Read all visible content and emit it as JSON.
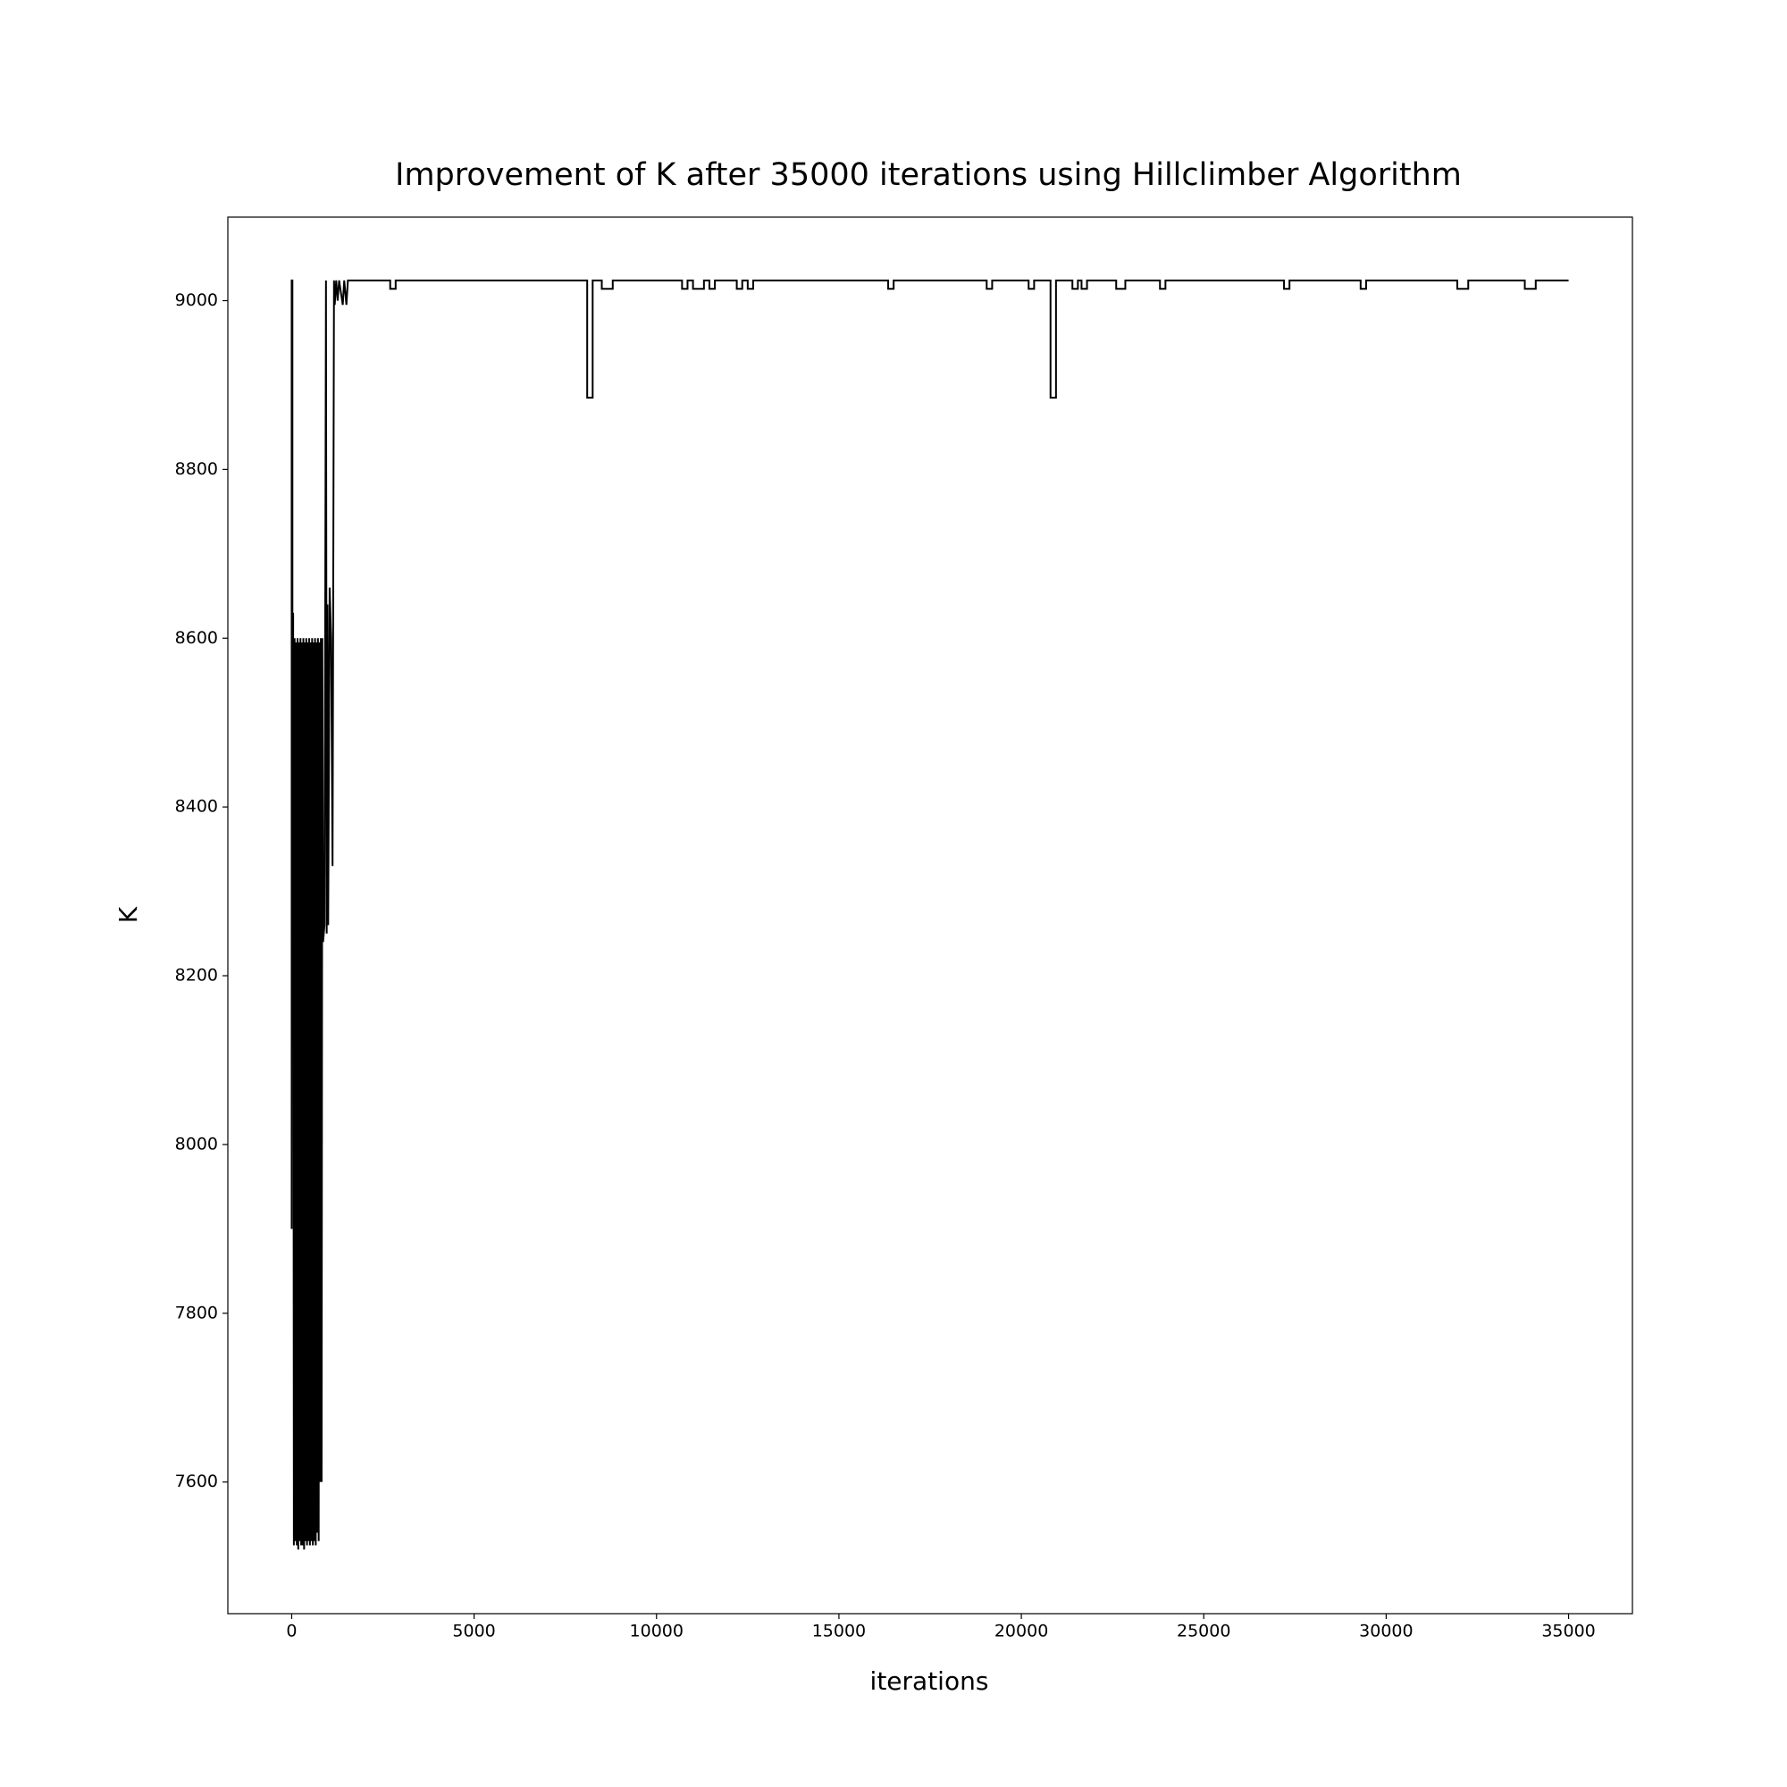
{
  "chart_data": {
    "type": "line",
    "title": "Improvement of K after 35000 iterations using Hillclimber Algorithm",
    "xlabel": "iterations",
    "ylabel": "K",
    "xlim": [
      -1750,
      36750
    ],
    "ylim": [
      7444,
      9099
    ],
    "xticks": [
      0,
      5000,
      10000,
      15000,
      20000,
      25000,
      30000,
      35000
    ],
    "yticks": [
      7600,
      7800,
      8000,
      8200,
      8400,
      8600,
      8800,
      9000
    ],
    "grid": false,
    "series": [
      {
        "name": "K",
        "color": "#000000",
        "x": [
          0,
          0,
          20,
          20,
          40,
          60,
          80,
          100,
          120,
          140,
          160,
          180,
          200,
          220,
          240,
          260,
          280,
          300,
          320,
          340,
          360,
          380,
          400,
          420,
          440,
          460,
          480,
          500,
          520,
          540,
          560,
          580,
          600,
          620,
          640,
          660,
          680,
          700,
          720,
          740,
          760,
          780,
          800,
          820,
          840,
          860,
          900,
          940,
          960,
          980,
          1000,
          1040,
          1080,
          1120,
          1160,
          1180,
          1220,
          1260,
          1300,
          1400,
          1440,
          1500,
          1540,
          2700,
          2700,
          2850,
          2850,
          8100,
          8100,
          8250,
          8250,
          8500,
          8500,
          8800,
          8800,
          10700,
          10700,
          10850,
          10850,
          11000,
          11000,
          11300,
          11300,
          11450,
          11450,
          11600,
          11600,
          12200,
          12200,
          12350,
          12350,
          12500,
          12500,
          12650,
          12650,
          16350,
          16350,
          16500,
          16500,
          19050,
          19050,
          19200,
          19200,
          20200,
          20200,
          20350,
          20350,
          20800,
          20800,
          20950,
          20950,
          21400,
          21400,
          21550,
          21550,
          21650,
          21650,
          21800,
          21800,
          22600,
          22600,
          22850,
          22850,
          23800,
          23800,
          23950,
          23950,
          27200,
          27200,
          27350,
          27350,
          29300,
          29300,
          29450,
          29450,
          31950,
          31950,
          32250,
          32250,
          33800,
          33800,
          34100,
          34100,
          35000
        ],
        "values": [
          7900,
          9024,
          9024,
          8290,
          8630,
          7525,
          8600,
          7530,
          8595,
          7525,
          8600,
          7520,
          8595,
          7530,
          8600,
          7525,
          8595,
          7525,
          8600,
          7520,
          8595,
          7530,
          8600,
          7525,
          8595,
          7530,
          8600,
          7525,
          8595,
          7530,
          8600,
          7525,
          8595,
          7530,
          8600,
          7525,
          8595,
          7540,
          8600,
          7530,
          8595,
          7600,
          8600,
          7600,
          8600,
          8240,
          8260,
          9024,
          8250,
          8640,
          8260,
          8660,
          8600,
          8330,
          9024,
          8995,
          9024,
          9000,
          9024,
          8995,
          9024,
          8995,
          9024,
          9024,
          9014,
          9014,
          9024,
          9024,
          8885,
          8885,
          9024,
          9024,
          9014,
          9014,
          9024,
          9024,
          9014,
          9014,
          9024,
          9024,
          9014,
          9014,
          9024,
          9024,
          9014,
          9014,
          9024,
          9024,
          9014,
          9014,
          9024,
          9024,
          9014,
          9014,
          9024,
          9024,
          9014,
          9014,
          9024,
          9024,
          9014,
          9014,
          9024,
          9024,
          9014,
          9014,
          9024,
          9024,
          8885,
          8885,
          9024,
          9024,
          9014,
          9014,
          9024,
          9024,
          9014,
          9014,
          9024,
          9024,
          9014,
          9014,
          9024,
          9024,
          9014,
          9014,
          9024,
          9024,
          9014,
          9014,
          9024,
          9024,
          9014,
          9014,
          9024,
          9024,
          9014,
          9014,
          9024,
          9024,
          9014,
          9014,
          9024,
          9024
        ]
      }
    ]
  }
}
